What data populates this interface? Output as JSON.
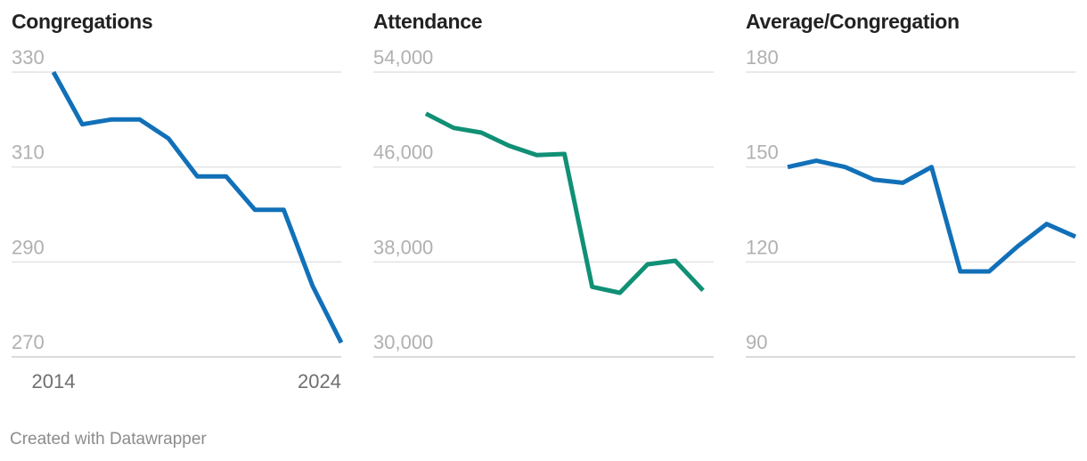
{
  "chart_data": [
    {
      "type": "line",
      "title": "Congregations",
      "x": [
        2014,
        2015,
        2016,
        2017,
        2018,
        2019,
        2020,
        2021,
        2022,
        2023,
        2024
      ],
      "series": [
        {
          "name": "Congregations",
          "values": [
            330,
            319,
            320,
            320,
            316,
            308,
            308,
            301,
            301,
            285,
            273
          ]
        }
      ],
      "y_ticks": [
        "330",
        "310",
        "290",
        "270"
      ],
      "y_tick_values": [
        330,
        310,
        290,
        270
      ],
      "ylim": [
        270,
        330
      ],
      "x_ticks": [
        "2014",
        "2024"
      ],
      "xlabel": "",
      "ylabel": "",
      "color": "#1170b8"
    },
    {
      "type": "line",
      "title": "Attendance",
      "x": [
        2014,
        2015,
        2016,
        2017,
        2018,
        2019,
        2020,
        2021,
        2022,
        2023,
        2024
      ],
      "series": [
        {
          "name": "Attendance",
          "values": [
            50500,
            49300,
            48900,
            47800,
            47000,
            47100,
            35900,
            35400,
            37800,
            38100,
            35600
          ]
        }
      ],
      "y_ticks": [
        "54,000",
        "46,000",
        "38,000",
        "30,000"
      ],
      "y_tick_values": [
        54000,
        46000,
        38000,
        30000
      ],
      "ylim": [
        30000,
        54000
      ],
      "x_ticks": [],
      "xlabel": "",
      "ylabel": "",
      "color": "#109075"
    },
    {
      "type": "line",
      "title": "Average/Congregation",
      "x": [
        2014,
        2015,
        2016,
        2017,
        2018,
        2019,
        2020,
        2021,
        2022,
        2023,
        2024
      ],
      "series": [
        {
          "name": "Average/Congregation",
          "values": [
            150,
            152,
            150,
            146,
            145,
            150,
            117,
            117,
            125,
            132,
            128
          ]
        }
      ],
      "y_ticks": [
        "180",
        "150",
        "120",
        "90"
      ],
      "y_tick_values": [
        180,
        150,
        120,
        90
      ],
      "ylim": [
        90,
        180
      ],
      "x_ticks": [],
      "xlabel": "",
      "ylabel": "",
      "color": "#1170b8"
    }
  ],
  "footer": {
    "credit": "Created with Datawrapper"
  }
}
